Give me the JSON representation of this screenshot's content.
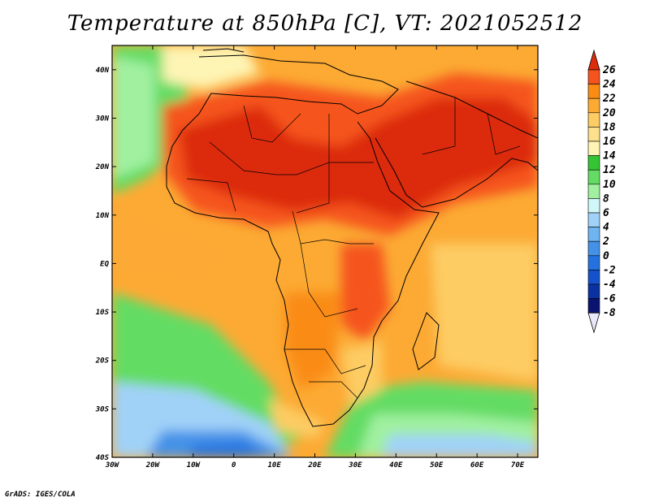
{
  "title": "Temperature at 850hPa [C], VT: 2021052512",
  "footer": "GrADS: IGES/COLA",
  "map": {
    "lat_labels": [
      "40N",
      "30N",
      "20N",
      "10N",
      "EQ",
      "10S",
      "20S",
      "30S",
      "40S"
    ],
    "lon_labels": [
      "30W",
      "20W",
      "10W",
      "0",
      "10E",
      "20E",
      "30E",
      "40E",
      "50E",
      "60E",
      "70E"
    ],
    "lat_range": [
      -40,
      45
    ],
    "lon_range": [
      -30,
      75
    ]
  },
  "colorbar": {
    "labels": [
      "26",
      "24",
      "22",
      "20",
      "18",
      "16",
      "14",
      "12",
      "10",
      "8",
      "6",
      "4",
      "2",
      "0",
      "-2",
      "-4",
      "-6",
      "-8"
    ],
    "colors": [
      "#dc2c0c",
      "#f5541e",
      "#fa8c14",
      "#fcaa34",
      "#fdcc64",
      "#fde08c",
      "#fef4b4",
      "#34c434",
      "#64dc64",
      "#a0f0a0",
      "#d0f8f8",
      "#a0d2f8",
      "#6eb4f0",
      "#4492e8",
      "#2472e0",
      "#1452cc",
      "#0a32a0",
      "#0a1470",
      "#e8e8fa"
    ]
  }
}
